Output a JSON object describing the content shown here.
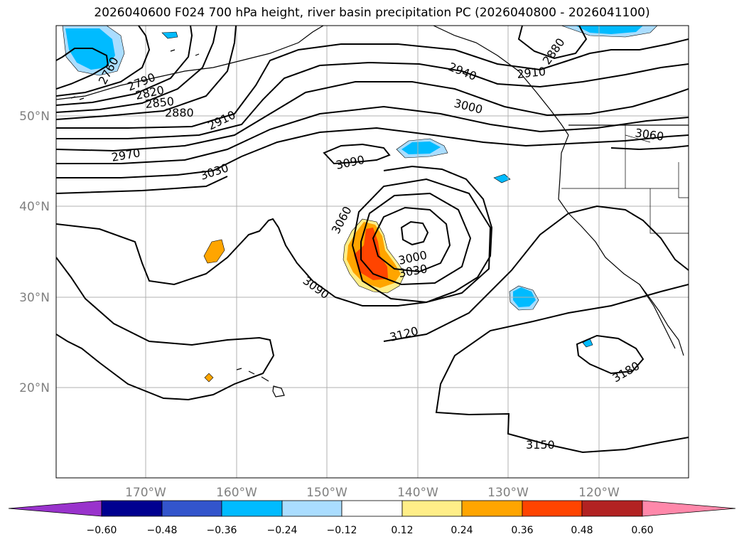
{
  "title": "2026040600 F024 700 hPa height, river basin precipitation PC (2026040800 - 2026041100)",
  "map": {
    "lon_ticks": [
      "170°W",
      "160°W",
      "150°W",
      "140°W",
      "130°W",
      "120°W"
    ],
    "lat_ticks": [
      "50°N",
      "40°N",
      "30°N",
      "20°N"
    ],
    "contour_labels": [
      "2760",
      "2790",
      "2820",
      "2850",
      "2880",
      "2910",
      "2970",
      "3030",
      "3090",
      "3060",
      "3000",
      "3030",
      "3090",
      "3120",
      "3150",
      "3180",
      "2940",
      "2910",
      "2880",
      "3000",
      "3060"
    ]
  },
  "colorbar": {
    "ticks": [
      "−0.60",
      "−0.48",
      "−0.36",
      "−0.24",
      "−0.12",
      "0.12",
      "0.24",
      "0.36",
      "0.48",
      "0.60"
    ],
    "colors": [
      "#9933cc",
      "#000090",
      "#3355cc",
      "#00bbff",
      "#aaddff",
      "#ffffff",
      "#ffee88",
      "#ffa500",
      "#ff4400",
      "#b22222",
      "#ff88aa"
    ]
  }
}
